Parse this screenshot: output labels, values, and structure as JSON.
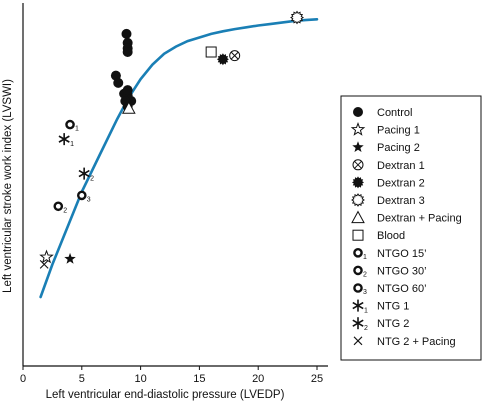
{
  "chart_data": {
    "type": "scatter",
    "title": "",
    "xlabel": "Left ventricular end-diastolic pressure (LVEDP)",
    "ylabel": "Left ventricular stroke work index (LVSWI)",
    "xlim": [
      0,
      26
    ],
    "ylim": [
      0,
      100
    ],
    "xticks": [
      0,
      5,
      10,
      15,
      20,
      25
    ],
    "yticks": [],
    "grid": false,
    "legend_position": "right",
    "curve_color": "#1a7fb5",
    "fit_curve": {
      "x": [
        1.5,
        2.5,
        3.5,
        5,
        6.5,
        8,
        9,
        10,
        11,
        12,
        13,
        14,
        15,
        16,
        17,
        18,
        19,
        20,
        21,
        22,
        23,
        24,
        25
      ],
      "y": [
        19,
        28,
        36,
        48,
        58,
        68,
        74,
        79,
        83,
        86,
        88,
        89.5,
        90.5,
        91.5,
        92.2,
        92.8,
        93.3,
        93.8,
        94.2,
        94.6,
        95,
        95.3,
        95.5
      ]
    },
    "series": [
      {
        "name": "Control",
        "marker": "filled-circle",
        "subscript": "",
        "x": [
          8.8,
          8.9,
          8.9,
          8.9,
          7.9,
          8.1,
          8.6,
          8.9,
          9.2,
          8.9,
          8.7,
          8.9
        ],
        "y": [
          91.5,
          89,
          87.5,
          86.5,
          80,
          78,
          75,
          71.5,
          73,
          74.5,
          73,
          76
        ]
      },
      {
        "name": "Pacing 1",
        "marker": "open-star",
        "subscript": "",
        "x": [
          2
        ],
        "y": [
          30
        ]
      },
      {
        "name": "Pacing 2",
        "marker": "filled-star",
        "subscript": "",
        "x": [
          4
        ],
        "y": [
          29.5
        ]
      },
      {
        "name": "Dextran 1",
        "marker": "circle-x",
        "subscript": "",
        "x": [
          18
        ],
        "y": [
          85.5
        ]
      },
      {
        "name": "Dextran 2",
        "marker": "filled-circle-spiky",
        "subscript": "",
        "x": [
          17
        ],
        "y": [
          84.5
        ]
      },
      {
        "name": "Dextran 3",
        "marker": "open-circle-spiky",
        "subscript": "",
        "x": [
          23.3
        ],
        "y": [
          96
        ]
      },
      {
        "name": "Dextran + Pacing",
        "marker": "open-triangle",
        "subscript": "",
        "x": [
          9
        ],
        "y": [
          71
        ]
      },
      {
        "name": "Blood",
        "marker": "open-square",
        "subscript": "",
        "x": [
          16
        ],
        "y": [
          86.5
        ]
      },
      {
        "name": "NTGO 15’",
        "marker": "thick-ring",
        "subscript": "1",
        "x": [
          4
        ],
        "y": [
          66.5
        ]
      },
      {
        "name": "NTGO 30’",
        "marker": "thick-ring",
        "subscript": "2",
        "x": [
          3
        ],
        "y": [
          44
        ]
      },
      {
        "name": "NTGO 60’",
        "marker": "thick-ring",
        "subscript": "3",
        "x": [
          5
        ],
        "y": [
          47
        ]
      },
      {
        "name": "NTG 1",
        "marker": "asterisk",
        "subscript": "1",
        "x": [
          3.5
        ],
        "y": [
          62.5
        ]
      },
      {
        "name": "NTG 2",
        "marker": "asterisk",
        "subscript": "2",
        "x": [
          5.2
        ],
        "y": [
          53
        ]
      },
      {
        "name": "NTG 2 + Pacing",
        "marker": "x",
        "subscript": "",
        "x": [
          1.8
        ],
        "y": [
          28
        ]
      }
    ]
  }
}
